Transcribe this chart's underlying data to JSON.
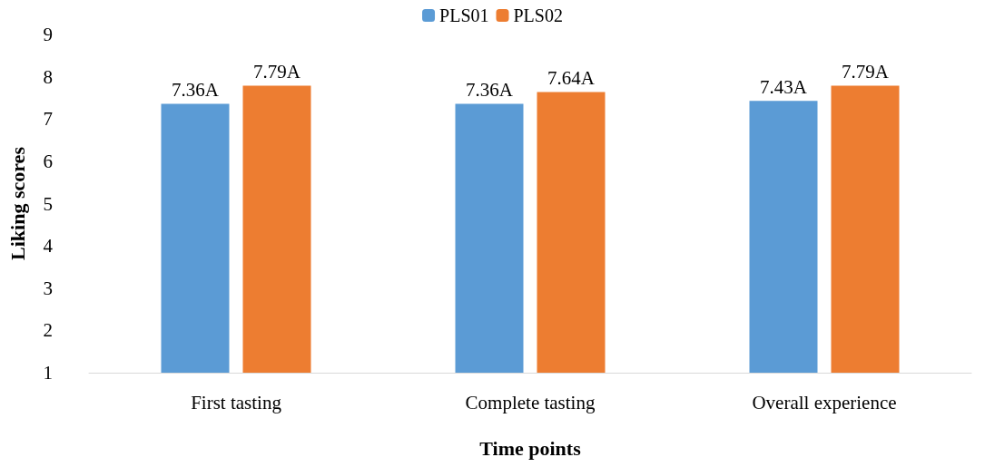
{
  "chart_data": {
    "type": "bar",
    "xlabel": "Time points",
    "ylabel": "Liking scores",
    "categories": [
      "First tasting",
      "Complete tasting",
      "Overall experience"
    ],
    "series": [
      {
        "name": "PLS01",
        "color": "#5b9bd5",
        "values": [
          7.36,
          7.36,
          7.43
        ],
        "value_labels": [
          "7.36A",
          "7.36A",
          "7.43A"
        ]
      },
      {
        "name": "PLS02",
        "color": "#ed7d31",
        "values": [
          7.79,
          7.64,
          7.79
        ],
        "value_labels": [
          "7.79A",
          "7.64A",
          "7.79A"
        ]
      }
    ],
    "ylim": [
      1,
      9
    ],
    "yticks": [
      1,
      2,
      3,
      4,
      5,
      6,
      7,
      8,
      9
    ],
    "grid": false,
    "legend": "top"
  }
}
